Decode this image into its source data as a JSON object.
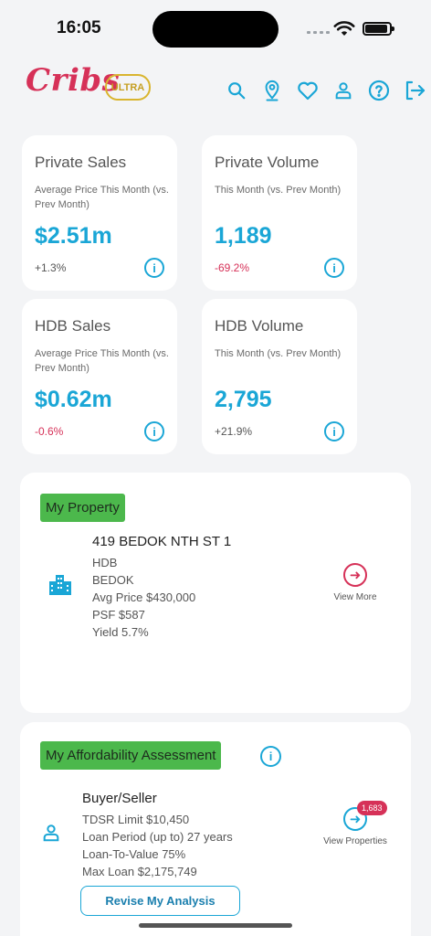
{
  "status": {
    "time": "16:05"
  },
  "header": {
    "logo": "Cribs",
    "badge": "ULTRA"
  },
  "stats": [
    {
      "title": "Private Sales",
      "subtitle": "Average Price This Month (vs. Prev Month)",
      "value": "$2.51m",
      "change": "+1.3%"
    },
    {
      "title": "Private Volume",
      "subtitle": "This Month (vs. Prev Month)",
      "value": "1,189",
      "change": "-69.2%"
    },
    {
      "title": "HDB Sales",
      "subtitle": "Average Price This Month (vs. Prev Month)",
      "value": "$0.62m",
      "change": "-0.6%"
    },
    {
      "title": "HDB Volume",
      "subtitle": "This Month (vs. Prev Month)",
      "value": "2,795",
      "change": "+21.9%"
    }
  ],
  "my_property": {
    "tag": "My Property",
    "address": "419 BEDOK NTH ST 1",
    "type": "HDB",
    "area": "BEDOK",
    "avg_price": "Avg Price $430,000",
    "psf": "PSF $587",
    "yield": "Yield 5.7%",
    "action_label": "View More"
  },
  "affordability": {
    "tag": "My Affordability Assessment",
    "role": "Buyer/Seller",
    "tdsr": "TDSR Limit $10,450",
    "loan_period": "Loan Period (up to) 27 years",
    "ltv": "Loan-To-Value 75%",
    "max_loan": "Max Loan $2,175,749",
    "action_label": "View Properties",
    "count_badge": "1,683",
    "button": "Revise My Analysis"
  },
  "colors": {
    "accent": "#1aa6d6",
    "brand": "#d63158",
    "tag": "#4cb84c"
  }
}
